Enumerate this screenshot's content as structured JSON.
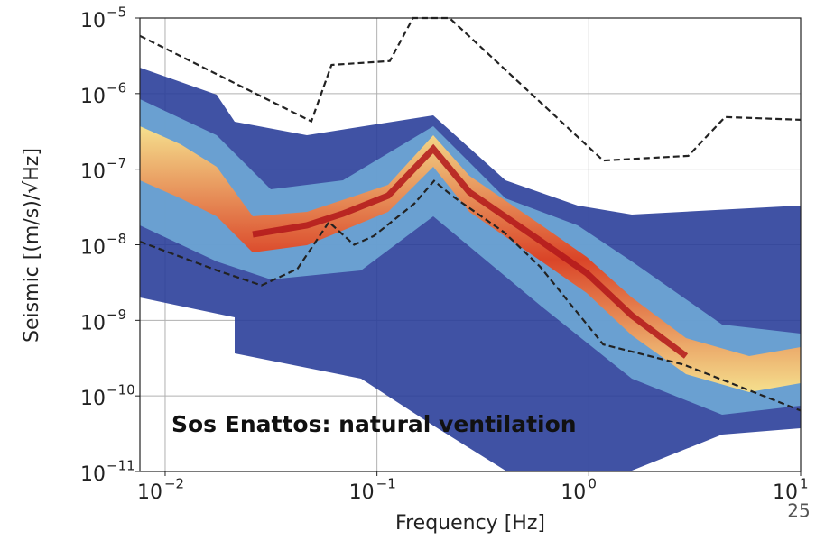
{
  "chart_data": {
    "type": "line",
    "annotation": "Sos Enattos: natural ventilation",
    "page_number": "25",
    "x_label": "Frequency [Hz]",
    "y_label": "Seismic [(m/s)/√Hz]",
    "xscale": "log",
    "yscale": "log",
    "grid": true,
    "xlim": [
      0.0076,
      10
    ],
    "ylim": [
      1e-11,
      1e-05
    ],
    "xticks": [
      {
        "value": 0.01,
        "label": "10",
        "exponent": "−2"
      },
      {
        "value": 0.1,
        "label": "10",
        "exponent": "−1"
      },
      {
        "value": 1,
        "label": "10",
        "exponent": "0"
      },
      {
        "value": 10,
        "label": "10",
        "exponent": "1"
      }
    ],
    "yticks": [
      {
        "value": 1e-11,
        "label": "10",
        "exponent": "−11"
      },
      {
        "value": 1e-10,
        "label": "10",
        "exponent": "−10"
      },
      {
        "value": 1e-09,
        "label": "10",
        "exponent": "−9"
      },
      {
        "value": 1e-08,
        "label": "10",
        "exponent": "−8"
      },
      {
        "value": 1e-07,
        "label": "10",
        "exponent": "−7"
      },
      {
        "value": 1e-06,
        "label": "10",
        "exponent": "−6"
      },
      {
        "value": 1e-05,
        "label": "10",
        "exponent": "−5"
      }
    ],
    "series": [
      {
        "color": "#222222",
        "linestyle": "dashed",
        "x": [
          0.0076,
          0.049,
          0.061,
          0.115,
          0.148,
          0.22,
          1.17,
          2.95,
          4.4,
          10
        ],
        "values": [
          5.8e-06,
          4.3e-07,
          2.4e-06,
          2.7e-06,
          1e-05,
          1e-05,
          1.3e-07,
          1.5e-07,
          4.9e-07,
          4.5e-07
        ]
      },
      {
        "color": "#222222",
        "linestyle": "dashed",
        "x": [
          0.0076,
          0.0175,
          0.0285,
          0.0421,
          0.0593,
          0.078,
          0.0964,
          0.15,
          0.186,
          0.23,
          0.4,
          0.59,
          1.17,
          2.8,
          10
        ],
        "values": [
          1.1e-08,
          4.6e-09,
          2.9e-09,
          4.8e-09,
          2e-08,
          1e-08,
          1.3e-08,
          3.5e-08,
          7e-08,
          4.3e-08,
          1.45e-08,
          5.1e-09,
          4.8e-10,
          2.6e-10,
          6.4e-11
        ]
      }
    ]
  }
}
